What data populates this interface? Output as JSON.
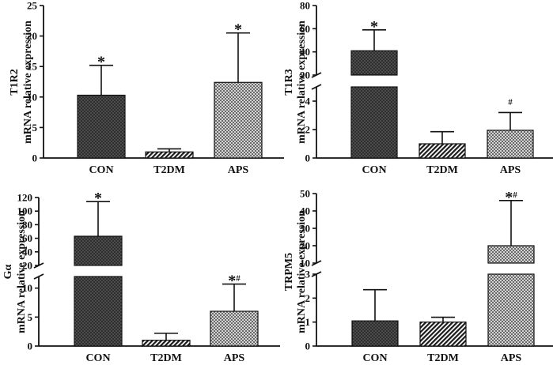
{
  "chart_data": [
    {
      "type": "bar",
      "title": "",
      "ylabel_gene": "T1R2",
      "ylabel": "mRNA relative expression",
      "categories": [
        "CON",
        "T2DM",
        "APS"
      ],
      "values": [
        10.3,
        1.0,
        12.4
      ],
      "errors": [
        4.9,
        0.5,
        8.1
      ],
      "annotations": [
        "*",
        "",
        "*"
      ],
      "ylim": [
        0,
        25
      ],
      "yticks": [
        "0",
        "5",
        "10",
        "15",
        "20",
        "25"
      ],
      "break": null
    },
    {
      "type": "bar",
      "title": "",
      "ylabel_gene": "T1R3",
      "ylabel": "mRNA relative expression",
      "categories": [
        "CON",
        "T2DM",
        "APS"
      ],
      "values": [
        41,
        1.0,
        1.95
      ],
      "errors": [
        18,
        0.85,
        1.25
      ],
      "annotations": [
        "*",
        "",
        "#"
      ],
      "ylim": [
        0,
        80
      ],
      "yticks": [
        "0",
        "2",
        "4",
        "20",
        "40",
        "60",
        "80"
      ],
      "break": [
        5,
        20
      ]
    },
    {
      "type": "bar",
      "title": "",
      "ylabel_gene": "Gα",
      "ylabel": "mRNA relative expression",
      "categories": [
        "CON",
        "T2DM",
        "APS"
      ],
      "values": [
        63,
        1.0,
        6.0
      ],
      "errors": [
        51,
        1.2,
        4.7
      ],
      "annotations": [
        "*",
        "",
        "*#"
      ],
      "ylim": [
        0,
        120
      ],
      "yticks": [
        "0",
        "5",
        "10",
        "20",
        "40",
        "60",
        "80",
        "100",
        "120"
      ],
      "break": [
        12,
        20
      ]
    },
    {
      "type": "bar",
      "title": "",
      "ylabel_gene": "TRPM5",
      "ylabel": "mRNA relative expression",
      "categories": [
        "CON",
        "T2DM",
        "APS"
      ],
      "values": [
        1.05,
        1.0,
        20
      ],
      "errors": [
        1.3,
        0.2,
        26
      ],
      "annotations": [
        "",
        "",
        "*#"
      ],
      "ylim": [
        0,
        50
      ],
      "yticks": [
        "0",
        "1",
        "2",
        "3",
        "10",
        "20",
        "30",
        "40",
        "50"
      ],
      "break": [
        3,
        10
      ]
    }
  ]
}
